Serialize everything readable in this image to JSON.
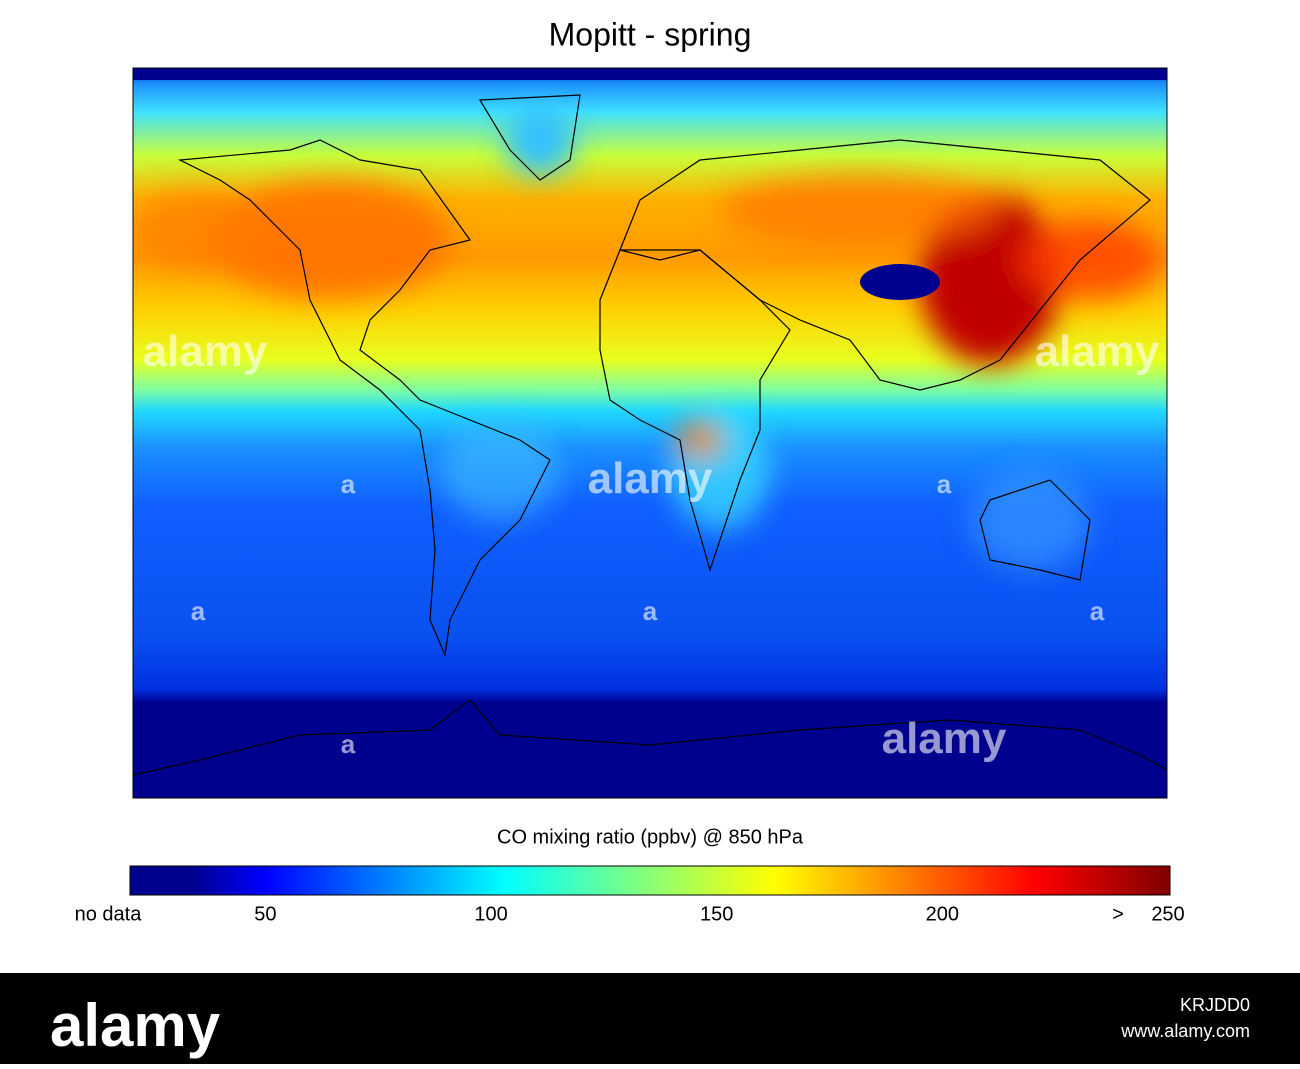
{
  "title": "Mopitt - spring",
  "colorbar": {
    "label": "CO mixing ratio (ppbv) @ 850 hPa",
    "no_data_label": "no data",
    "max_prefix": ">",
    "range": [
      20,
      250
    ],
    "ticks": [
      50,
      100,
      150,
      200,
      250
    ]
  },
  "watermark": {
    "logo": "alamy",
    "mark": "a"
  },
  "footer": {
    "logo": "alamy",
    "image_id": "KRJDD0",
    "url": "www.alamy.com"
  }
}
